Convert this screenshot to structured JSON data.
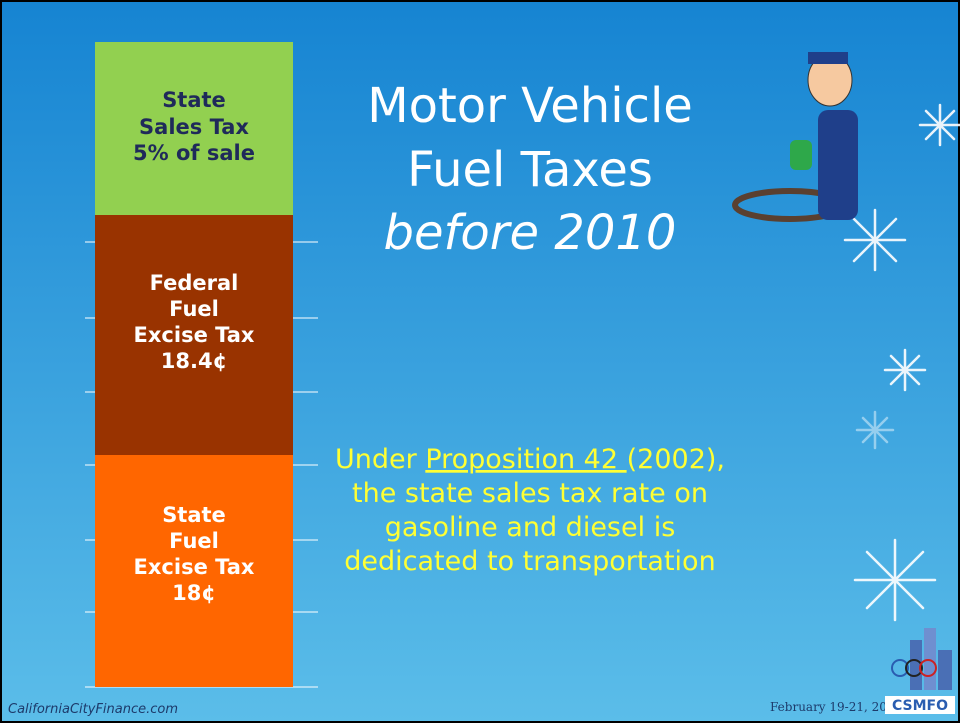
{
  "slide": {
    "title": [
      "Motor Vehicle",
      "Fuel Taxes",
      "before 2010"
    ],
    "blocks": [
      {
        "lines": [
          "State",
          "Sales Tax",
          "5% of sale"
        ]
      },
      {
        "lines": [
          "Federal",
          "Fuel",
          "Excise Tax",
          "18.4¢"
        ]
      },
      {
        "lines": [
          "State",
          "Fuel",
          "Excise Tax",
          "18¢"
        ]
      }
    ],
    "body": {
      "prefix": "Under ",
      "link": "Proposition 42 ",
      "suffix": "(2002),",
      "lines": [
        "the state sales tax rate on",
        "gasoline and diesel is",
        "dedicated to transportation"
      ]
    },
    "footer": {
      "site": "CaliforniaCityFinance.com",
      "date": "February 19-21, 2014",
      "logo": "CSMFO"
    }
  }
}
